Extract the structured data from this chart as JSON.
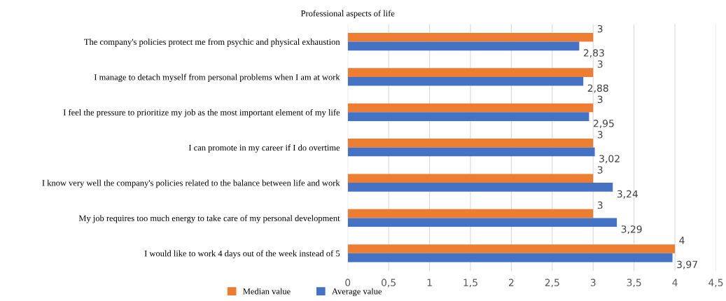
{
  "chart_data": {
    "type": "bar",
    "orientation": "horizontal",
    "title": "Professional aspects of life",
    "categories": [
      "The company's policies protect me from psychic and physical exhaustion",
      "I manage to detach myself from personal problems when I am at work",
      "I feel the pressure to prioritize my job as the most important element of my life",
      "I can promote in my career if I do overtime",
      "I know very well the company's policies related to the balance between life and work",
      "My job requires too much energy to take care of my personal development",
      "I would like to work 4 days out of the week instead of 5"
    ],
    "series": [
      {
        "name": "Median value",
        "color": "#ed7d31",
        "values": [
          3,
          3,
          3,
          3,
          3,
          3,
          4
        ],
        "value_labels": [
          "3",
          "3",
          "3",
          "3",
          "3",
          "3",
          "4"
        ]
      },
      {
        "name": "Average value",
        "color": "#4472c4",
        "values": [
          2.83,
          2.88,
          2.95,
          3.02,
          3.24,
          3.29,
          3.97
        ],
        "value_labels": [
          "2,83",
          "2,88",
          "2,95",
          "3,02",
          "3,24",
          "3,29",
          "3,97"
        ]
      }
    ],
    "xlim": [
      0,
      4.5
    ],
    "xticks": [
      0,
      {
        "value": 0.5,
        "label": "0,5"
      },
      1,
      {
        "value": 1.5,
        "label": "1,5"
      },
      2,
      {
        "value": 2.5,
        "label": "2,5"
      },
      3,
      {
        "value": 3.5,
        "label": "3,5"
      },
      4,
      {
        "value": 4.5,
        "label": "4,5"
      }
    ],
    "grid": "x",
    "legend": "bottom"
  }
}
